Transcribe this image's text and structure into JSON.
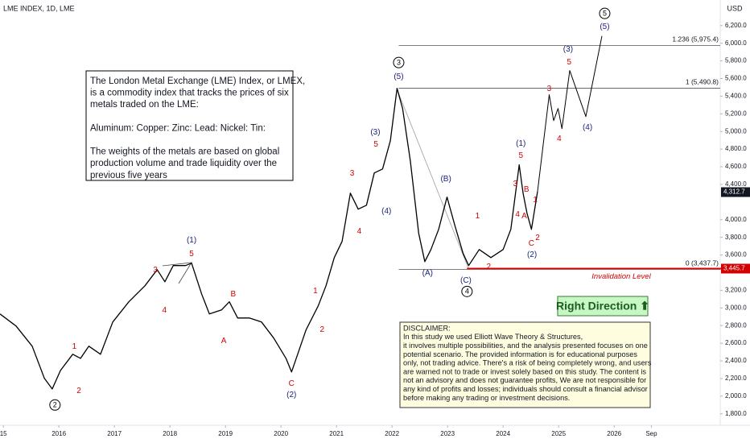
{
  "chart_data": {
    "type": "line",
    "title": "LME INDEX, 1D, LME",
    "currency": "USD",
    "xlim": [
      2014.94,
      2027.91
    ],
    "ylim": [
      1670,
      6490
    ],
    "xticks": [
      {
        "value": 2015,
        "label": "15"
      },
      2016,
      2017,
      2018,
      2019,
      2020,
      2021,
      2022,
      2023,
      2024,
      2025,
      2026,
      {
        "value": 2026.67,
        "label": "Sep"
      }
    ],
    "yticks": [
      {
        "value": 1800,
        "label": "1,800.0"
      },
      {
        "value": 2000,
        "label": "2,000.0"
      },
      {
        "value": 2200,
        "label": "2,200.0"
      },
      {
        "value": 2400,
        "label": "2,400.0"
      },
      {
        "value": 2600,
        "label": "2,600.0"
      },
      {
        "value": 2800,
        "label": "2,800.0"
      },
      {
        "value": 3000,
        "label": "3,000.0"
      },
      {
        "value": 3200,
        "label": "3,200.0"
      },
      {
        "value": 3600,
        "label": "3,600.0"
      },
      {
        "value": 3800,
        "label": "3,800.0"
      },
      {
        "value": 4000,
        "label": "4,000.0"
      },
      {
        "value": 4400,
        "label": "4,400.0"
      },
      {
        "value": 4600,
        "label": "4,600.0"
      },
      {
        "value": 4800,
        "label": "4,800.0"
      },
      {
        "value": 5000,
        "label": "5,000.0"
      },
      {
        "value": 5200,
        "label": "5,200.0"
      },
      {
        "value": 5400,
        "label": "5,400.0"
      },
      {
        "value": 5600,
        "label": "5,600.0"
      },
      {
        "value": 5800,
        "label": "5,800.0"
      },
      {
        "value": 6000,
        "label": "6,000.0"
      },
      {
        "value": 6200,
        "label": "6,200.0"
      }
    ],
    "series": [
      {
        "color": "#000000",
        "x": [
          2014.94,
          2015.23,
          2015.52,
          2015.74,
          2015.88,
          2016.03,
          2016.25,
          2016.39,
          2016.54,
          2016.75,
          2016.97,
          2017.26,
          2017.55,
          2017.77,
          2017.91,
          2018.06,
          2018.28,
          2018.39,
          2018.57,
          2018.71,
          2018.93,
          2019.07,
          2019.22,
          2019.43,
          2019.65,
          2019.87,
          2020.09,
          2020.19,
          2020.3,
          2020.45,
          2020.67,
          2020.81,
          2020.96,
          2021.1,
          2021.25,
          2021.39,
          2021.54,
          2021.68,
          2021.83,
          2021.97,
          2022.09,
          2022.19,
          2022.33,
          2022.48,
          2022.59,
          2022.7,
          2022.84,
          2022.99,
          2023.13,
          2023.28,
          2023.38,
          2023.57,
          2023.78,
          2024.0,
          2024.14,
          2024.29,
          2024.36,
          2024.43,
          2024.51,
          2024.62
        ],
        "values": [
          2932,
          2795,
          2566,
          2201,
          2082,
          2292,
          2475,
          2429,
          2566,
          2475,
          2840,
          3069,
          3251,
          3434,
          3297,
          3480,
          3480,
          3507,
          3160,
          2932,
          2977,
          3069,
          2886,
          2886,
          2840,
          2658,
          2429,
          2274,
          2475,
          2749,
          3023,
          3251,
          3571,
          3754,
          4301,
          4119,
          4164,
          4530,
          4575,
          4895,
          5489,
          5260,
          4667,
          3845,
          3525,
          3662,
          3891,
          4256,
          3936,
          3617,
          3480,
          3662,
          3571,
          3662,
          3891,
          4621,
          4301,
          4073,
          3891,
          4320
        ]
      },
      {
        "color": "#000000",
        "x": [
          2024.62,
          2024.83,
          2024.91,
          2024.99,
          2025.06,
          2025.2,
          2025.49,
          2025.78
        ],
        "values": [
          4320,
          5416,
          5123,
          5260,
          5032,
          5690,
          5169,
          6082
        ]
      }
    ],
    "last_price": {
      "value": 4312.7,
      "label": "4,312.7"
    },
    "fib_start": 2022.12,
    "fib_levels": [
      {
        "value": 5975.4,
        "label": "1.236 (5,975.4)"
      },
      {
        "value": 5490.8,
        "label": "1 (5,490.8)"
      },
      {
        "value": 3437.7,
        "label": "0 (3,437.7)"
      }
    ],
    "invalidation": {
      "value": 3445.7,
      "label": "3,445.7",
      "text": "Invalidation Level",
      "start": 2023.35,
      "color": "#d50000"
    },
    "annotations": [
      {
        "text": "2",
        "x": 2015.93,
        "y": 1900,
        "kind": "circle"
      },
      {
        "text": "1",
        "x": 2016.28,
        "y": 2566,
        "kind": "red"
      },
      {
        "text": "2",
        "x": 2016.36,
        "y": 2064,
        "kind": "red"
      },
      {
        "text": "3",
        "x": 2017.74,
        "y": 3434,
        "kind": "red"
      },
      {
        "text": "4",
        "x": 2017.9,
        "y": 2977,
        "kind": "red"
      },
      {
        "text": "(1)",
        "x": 2018.39,
        "y": 3772,
        "kind": "blue"
      },
      {
        "text": "5",
        "x": 2018.39,
        "y": 3617,
        "kind": "red"
      },
      {
        "text": "B",
        "x": 2019.14,
        "y": 3160,
        "kind": "red"
      },
      {
        "text": "A",
        "x": 2018.97,
        "y": 2630,
        "kind": "red"
      },
      {
        "text": "C",
        "x": 2020.19,
        "y": 2146,
        "kind": "red"
      },
      {
        "text": "(2)",
        "x": 2020.19,
        "y": 2018,
        "kind": "blue"
      },
      {
        "text": "1",
        "x": 2020.62,
        "y": 3196,
        "kind": "red"
      },
      {
        "text": "2",
        "x": 2020.74,
        "y": 2758,
        "kind": "red"
      },
      {
        "text": "3",
        "x": 2021.28,
        "y": 4530,
        "kind": "red"
      },
      {
        "text": "4",
        "x": 2021.41,
        "y": 3872,
        "kind": "red"
      },
      {
        "text": "(3)",
        "x": 2021.7,
        "y": 4995,
        "kind": "blue"
      },
      {
        "text": "5",
        "x": 2021.71,
        "y": 4858,
        "kind": "red"
      },
      {
        "text": "(4)",
        "x": 2021.9,
        "y": 4101,
        "kind": "blue"
      },
      {
        "text": "3",
        "x": 2022.12,
        "y": 5781,
        "kind": "circle"
      },
      {
        "text": "(5)",
        "x": 2022.12,
        "y": 5626,
        "kind": "blue"
      },
      {
        "text": "(A)",
        "x": 2022.64,
        "y": 3397,
        "kind": "blue"
      },
      {
        "text": "(B)",
        "x": 2022.97,
        "y": 4466,
        "kind": "blue"
      },
      {
        "text": "(C)",
        "x": 2023.33,
        "y": 3315,
        "kind": "blue"
      },
      {
        "text": "4",
        "x": 2023.35,
        "y": 3187,
        "kind": "circle"
      },
      {
        "text": "1",
        "x": 2023.54,
        "y": 4046,
        "kind": "red"
      },
      {
        "text": "2",
        "x": 2023.74,
        "y": 3470,
        "kind": "red"
      },
      {
        "text": "(1)",
        "x": 2024.32,
        "y": 4868,
        "kind": "blue"
      },
      {
        "text": "5",
        "x": 2024.32,
        "y": 4731,
        "kind": "red"
      },
      {
        "text": "3",
        "x": 2024.22,
        "y": 4411,
        "kind": "red"
      },
      {
        "text": "4",
        "x": 2024.26,
        "y": 4064,
        "kind": "red"
      },
      {
        "text": "B",
        "x": 2024.42,
        "y": 4347,
        "kind": "red"
      },
      {
        "text": "A",
        "x": 2024.38,
        "y": 4046,
        "kind": "red"
      },
      {
        "text": "1",
        "x": 2024.58,
        "y": 4228,
        "kind": "red"
      },
      {
        "text": "2",
        "x": 2024.62,
        "y": 3799,
        "kind": "red"
      },
      {
        "text": "C",
        "x": 2024.51,
        "y": 3735,
        "kind": "red"
      },
      {
        "text": "(2)",
        "x": 2024.52,
        "y": 3607,
        "kind": "blue"
      },
      {
        "text": "3",
        "x": 2024.83,
        "y": 5489,
        "kind": "red"
      },
      {
        "text": "(3)",
        "x": 2025.17,
        "y": 5936,
        "kind": "blue"
      },
      {
        "text": "5",
        "x": 2025.19,
        "y": 5790,
        "kind": "red"
      },
      {
        "text": "4",
        "x": 2025.01,
        "y": 4922,
        "kind": "red"
      },
      {
        "text": "(4)",
        "x": 2025.52,
        "y": 5050,
        "kind": "blue"
      },
      {
        "text": "5",
        "x": 2025.83,
        "y": 6338,
        "kind": "circle"
      },
      {
        "text": "(5)",
        "x": 2025.83,
        "y": 6192,
        "kind": "blue"
      }
    ],
    "info_box": {
      "lines": [
        "The London Metal Exchange (LME) Index, or LMEX,",
        "is a commodity index that tracks the prices of six",
        "metals traded on the LME:",
        "",
        "Aluminum: Copper: Zinc: Lead: Nickel: Tin:",
        "",
        "The weights of the metals are based on global",
        "production volume and trade liquidity over the",
        "previous five years"
      ]
    },
    "badge": "Right Direction ⬆",
    "disclaimer": {
      "lines": [
        "DISCLAIMER:",
        "In this study we used Elliott Wave Theory & Structures,",
        "it involves multiple possibilities, and the analysis presented focuses on one",
        "potential scenario. The provided information is for educational purposes",
        "only, not trading advice. There's a risk of being completely wrong, and users",
        "are warned not to trade or invest solely based on this study. The content is",
        "not an advisory and does not guarantee profits, We are not responsible for",
        "any kind of profits and losses; individuals should consult a financial advisor",
        "before making any trading or investment decisions."
      ]
    }
  }
}
